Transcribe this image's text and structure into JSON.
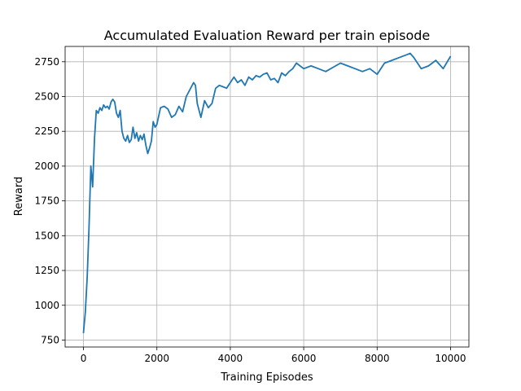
{
  "chart_data": {
    "type": "line",
    "title": "Accumulated Evaluation Reward per train episode",
    "xlabel": "Training Episodes",
    "ylabel": "Reward",
    "xlim": [
      -500,
      10500
    ],
    "ylim": [
      700,
      2860
    ],
    "xticks": [
      0,
      2000,
      4000,
      6000,
      8000,
      10000
    ],
    "yticks": [
      750,
      1000,
      1250,
      1500,
      1750,
      2000,
      2250,
      2500,
      2750
    ],
    "grid": true,
    "series": [
      {
        "name": "Reward",
        "color": "#1f77b4",
        "x": [
          0,
          50,
          100,
          150,
          200,
          250,
          300,
          350,
          400,
          450,
          500,
          550,
          600,
          650,
          700,
          750,
          800,
          850,
          900,
          950,
          1000,
          1050,
          1100,
          1150,
          1200,
          1250,
          1300,
          1350,
          1400,
          1450,
          1500,
          1550,
          1600,
          1650,
          1700,
          1750,
          1800,
          1850,
          1900,
          1950,
          2000,
          2100,
          2200,
          2300,
          2400,
          2500,
          2600,
          2700,
          2800,
          2900,
          3000,
          3050,
          3100,
          3200,
          3300,
          3400,
          3500,
          3600,
          3700,
          3800,
          3900,
          4000,
          4100,
          4200,
          4300,
          4400,
          4500,
          4600,
          4700,
          4800,
          4900,
          5000,
          5100,
          5200,
          5300,
          5400,
          5500,
          5600,
          5700,
          5800,
          5900,
          6000,
          6200,
          6400,
          6600,
          6800,
          7000,
          7200,
          7400,
          7600,
          7800,
          8000,
          8200,
          8400,
          8600,
          8800,
          8900,
          9000,
          9200,
          9400,
          9600,
          9800,
          10000
        ],
        "values": [
          800,
          950,
          1200,
          1550,
          2000,
          1850,
          2200,
          2400,
          2380,
          2420,
          2400,
          2440,
          2420,
          2430,
          2410,
          2460,
          2480,
          2460,
          2380,
          2350,
          2400,
          2250,
          2200,
          2180,
          2220,
          2170,
          2190,
          2280,
          2200,
          2240,
          2180,
          2220,
          2190,
          2230,
          2150,
          2090,
          2130,
          2180,
          2320,
          2280,
          2300,
          2420,
          2430,
          2410,
          2350,
          2370,
          2430,
          2390,
          2500,
          2550,
          2600,
          2580,
          2450,
          2350,
          2470,
          2420,
          2450,
          2560,
          2580,
          2570,
          2560,
          2600,
          2640,
          2600,
          2620,
          2580,
          2640,
          2620,
          2650,
          2640,
          2660,
          2670,
          2620,
          2630,
          2600,
          2670,
          2650,
          2680,
          2700,
          2740,
          2720,
          2700,
          2720,
          2700,
          2680,
          2710,
          2740,
          2720,
          2700,
          2680,
          2700,
          2660,
          2740,
          2760,
          2780,
          2800,
          2810,
          2780,
          2700,
          2720,
          2760,
          2700,
          2790
        ]
      }
    ]
  }
}
